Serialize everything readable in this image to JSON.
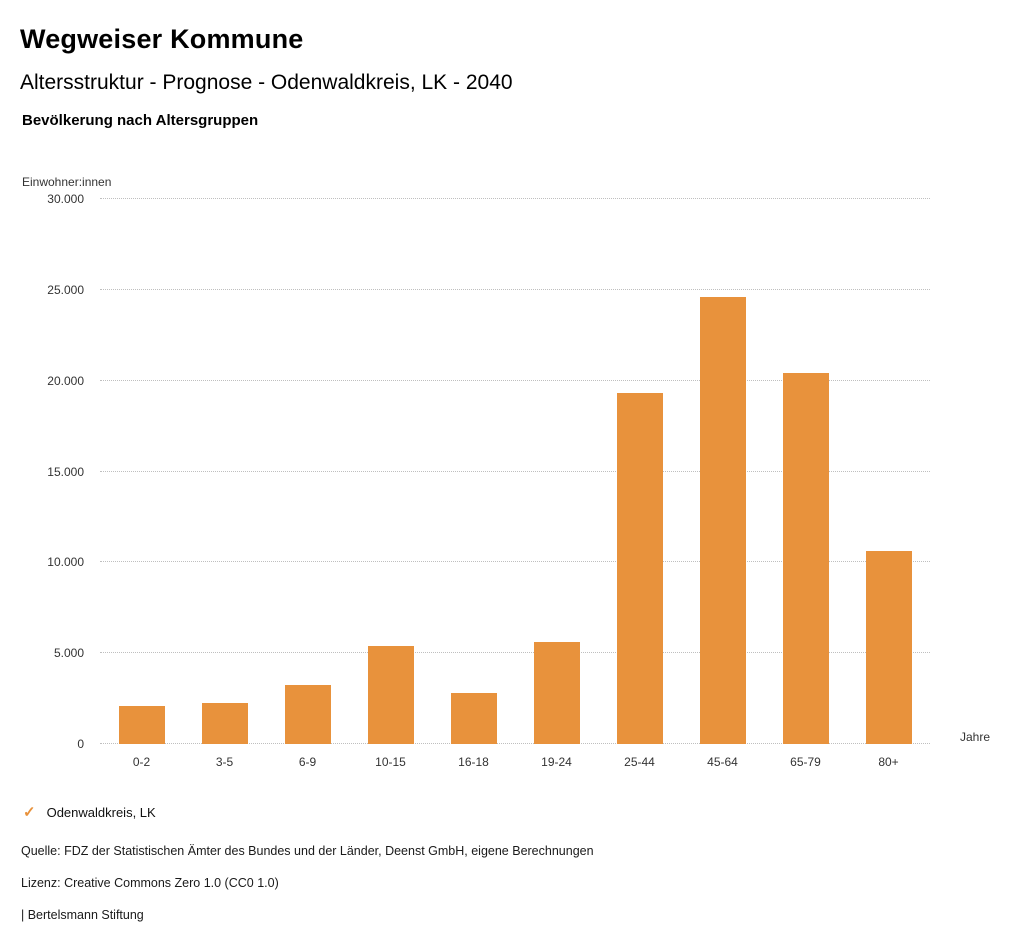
{
  "header": {
    "title": "Wegweiser Kommune",
    "subtitle": "Altersstruktur - Prognose - Odenwaldkreis, LK - 2040",
    "chart_heading": "Bevölkerung nach Altersgruppen"
  },
  "colors": {
    "accent": "#E8923C",
    "grid": "#BFBFBF"
  },
  "chart_data": {
    "type": "bar",
    "title": "Bevölkerung nach Altersgruppen",
    "y_unit_label": "Einwohner:innen",
    "x_suffix_label": "Jahre",
    "categories": [
      "0-2",
      "3-5",
      "6-9",
      "10-15",
      "16-18",
      "19-24",
      "25-44",
      "45-64",
      "65-79",
      "80+"
    ],
    "values": [
      2100,
      2250,
      3250,
      5400,
      2800,
      5600,
      19300,
      24600,
      20400,
      10650
    ],
    "series_name": "Odenwaldkreis, LK",
    "ylim": [
      0,
      30000
    ],
    "yticks": [
      {
        "value": 0,
        "label": "0"
      },
      {
        "value": 5000,
        "label": "5.000"
      },
      {
        "value": 10000,
        "label": "10.000"
      },
      {
        "value": 15000,
        "label": "15.000"
      },
      {
        "value": 20000,
        "label": "20.000"
      },
      {
        "value": 25000,
        "label": "25.000"
      },
      {
        "value": 30000,
        "label": "30.000"
      }
    ],
    "grid": true,
    "legend_position": "bottom-left"
  },
  "legend": {
    "check_icon": "✓",
    "label": "Odenwaldkreis, LK"
  },
  "footer": {
    "source": "Quelle: FDZ der Statistischen Ämter des Bundes und der Länder, Deenst GmbH, eigene Berechnungen",
    "license": "Lizenz: Creative Commons Zero 1.0 (CC0 1.0)",
    "attribution": "| Bertelsmann Stiftung"
  }
}
